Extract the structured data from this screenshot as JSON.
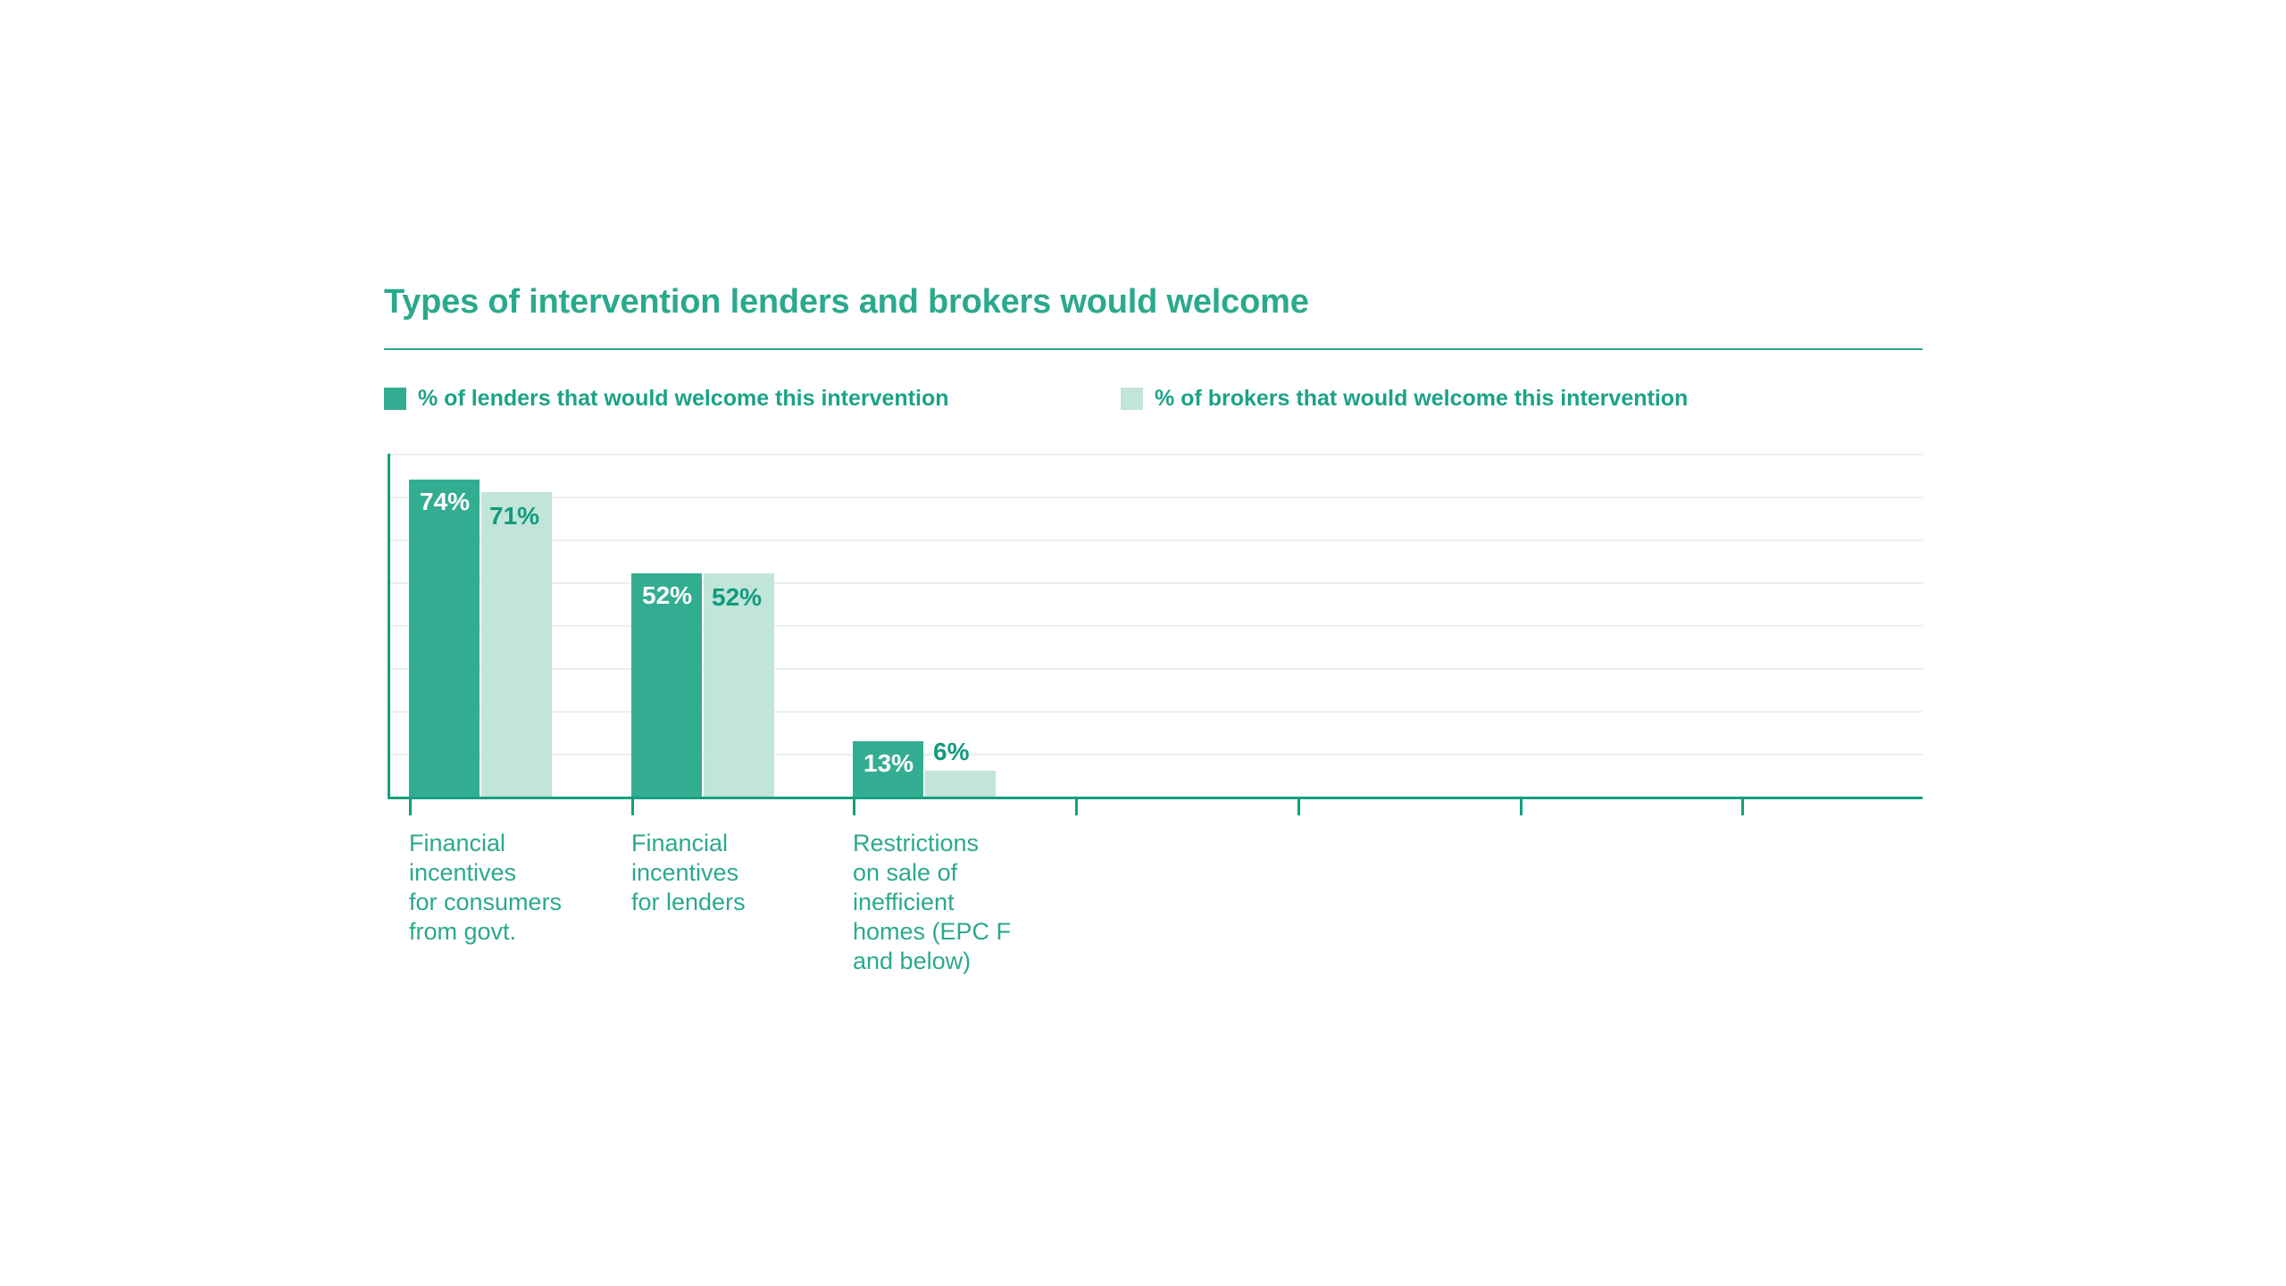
{
  "title": "Types of intervention lenders and brokers would welcome",
  "colors": {
    "brand_dark": "#33AD92",
    "brand_light": "#C1E5D9",
    "title_text": "#2BA98D",
    "legend_text": "#1CA287",
    "category_text": "#2BA98D",
    "value_text_dark": "#119B7E",
    "value_text_light": "#FFFFFF",
    "axis": "#12A07F",
    "grid": "#E9F1ED",
    "rule": "#2BA98D",
    "background": "#FFFFFF"
  },
  "legend": {
    "lenders": "% of lenders that would welcome this intervention",
    "brokers": "% of brokers that would welcome this intervention"
  },
  "chart_data": {
    "type": "bar",
    "title": "Types of intervention lenders and brokers would welcome",
    "categories": [
      "Financial incentives for consumers from govt.",
      "Financial incentives for lenders",
      "Restrictions on sale of inefficient homes (EPC F and below)"
    ],
    "category_lines": [
      [
        "Financial",
        "incentives",
        "for consumers",
        "from govt."
      ],
      [
        "Financial",
        "incentives",
        "for lenders"
      ],
      [
        "Restrictions",
        "on sale of",
        "inefficient",
        "homes (EPC F",
        "and below)"
      ]
    ],
    "series": [
      {
        "name": "% of lenders that would welcome this intervention",
        "values": [
          74,
          52,
          13
        ],
        "labels": [
          "74%",
          "52%",
          "13%"
        ],
        "label_positions": [
          "inside",
          "inside",
          "inside"
        ],
        "label_color": "light"
      },
      {
        "name": "% of brokers that would welcome this intervention",
        "values": [
          71,
          52,
          6
        ],
        "labels": [
          "71%",
          "52%",
          "6%"
        ],
        "label_positions": [
          "inside",
          "inside",
          "above"
        ],
        "label_color": "dark"
      }
    ],
    "xlabel": "",
    "ylabel": "",
    "ylim": [
      0,
      80
    ],
    "gridline_step_percent": 10,
    "grid": true,
    "y_axis_tick_labels_shown": false,
    "x_axis_tick_count": 7,
    "legend_position": "top"
  }
}
